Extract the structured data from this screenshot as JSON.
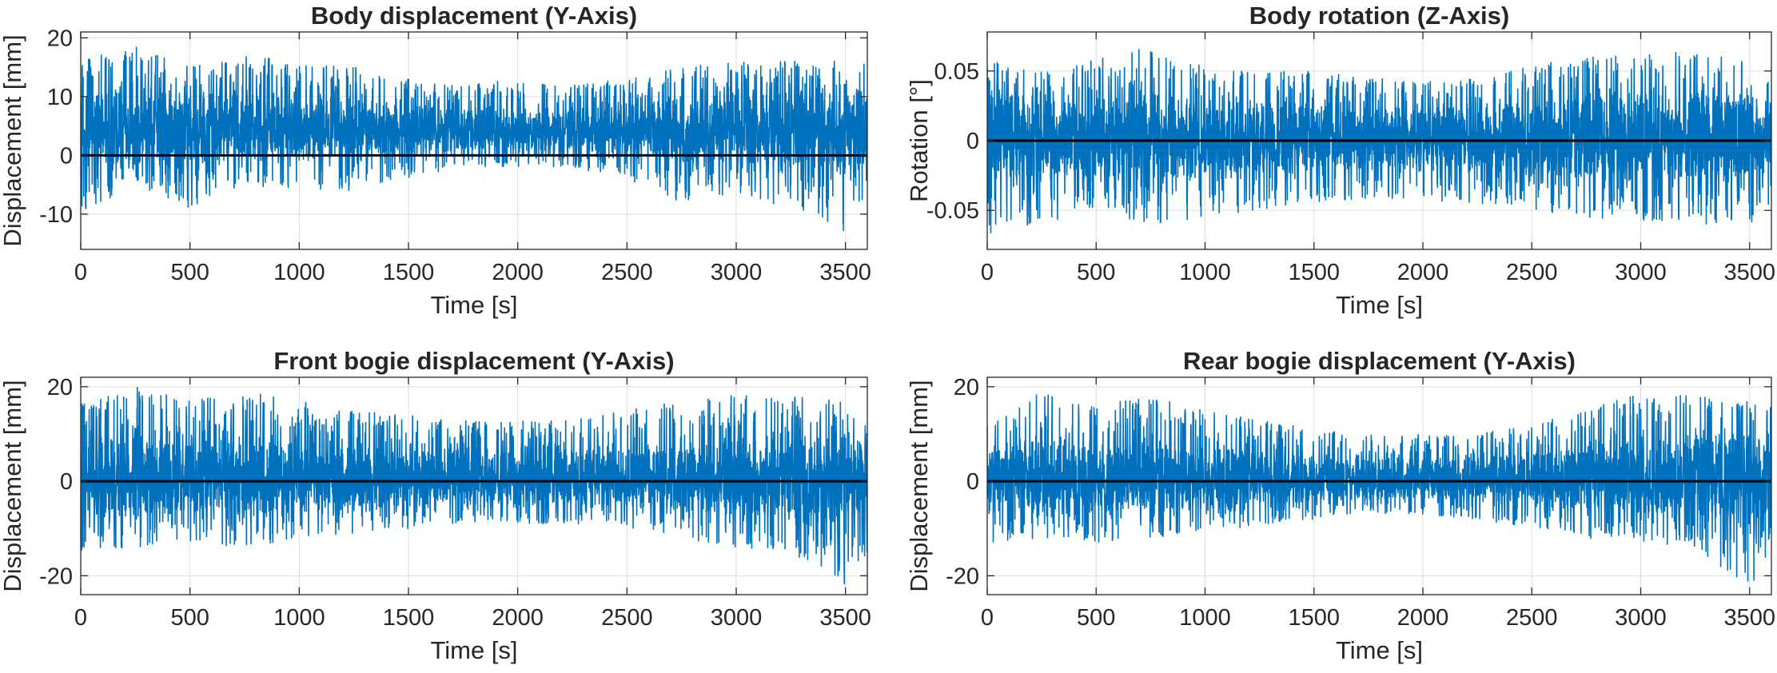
{
  "chart_data": [
    {
      "type": "line",
      "title": "Body displacement (Y-Axis)",
      "xlabel": "Time [s]",
      "ylabel": "Displacement [mm]",
      "xlim": [
        0,
        3600
      ],
      "ylim": [
        -16,
        21
      ],
      "xticks": [
        0,
        500,
        1000,
        1500,
        2000,
        2500,
        3000,
        3500
      ],
      "yticks": [
        -10,
        0,
        10,
        20
      ],
      "xtick_labels": [
        "0",
        "500",
        "1000",
        "1500",
        "2000",
        "2500",
        "3000",
        "3500"
      ],
      "ytick_labels": [
        "-10",
        "0",
        "10",
        "20"
      ],
      "grid": true,
      "reference_line": 0,
      "series": [
        {
          "name": "Body displacement",
          "color": "#0072BD",
          "mean": 4,
          "envelope_x": [
            0,
            250,
            500,
            750,
            1000,
            1250,
            1500,
            1750,
            2000,
            2250,
            2500,
            2750,
            3000,
            3250,
            3500,
            3600
          ],
          "envelope_max": [
            16,
            19,
            15,
            17,
            16,
            15,
            13,
            12,
            13,
            12,
            13,
            15,
            16,
            16,
            17,
            16
          ],
          "envelope_min": [
            -10,
            -5,
            -9,
            -5,
            -6,
            -6,
            -4,
            -2,
            -2,
            -2,
            -4,
            -8,
            -7,
            -9,
            -13,
            -9
          ]
        }
      ]
    },
    {
      "type": "line",
      "title": "Body rotation (Z-Axis)",
      "xlabel": "Time [s]",
      "ylabel": "Rotation [°]",
      "xlim": [
        0,
        3600
      ],
      "ylim": [
        -0.078,
        0.078
      ],
      "xticks": [
        0,
        500,
        1000,
        1500,
        2000,
        2500,
        3000,
        3500
      ],
      "yticks": [
        -0.05,
        0,
        0.05
      ],
      "xtick_labels": [
        "0",
        "500",
        "1000",
        "1500",
        "2000",
        "2500",
        "3000",
        "3500"
      ],
      "ytick_labels": [
        "-0.05",
        "0",
        "0.05"
      ],
      "grid": true,
      "reference_line": 0,
      "series": [
        {
          "name": "Body rotation",
          "color": "#0072BD",
          "mean": 0,
          "envelope_x": [
            0,
            250,
            500,
            750,
            1000,
            1250,
            1500,
            1750,
            2000,
            2250,
            2500,
            2750,
            3000,
            3250,
            3500,
            3600
          ],
          "envelope_max": [
            0.058,
            0.05,
            0.06,
            0.068,
            0.056,
            0.05,
            0.05,
            0.045,
            0.043,
            0.045,
            0.055,
            0.06,
            0.066,
            0.062,
            0.058,
            0.05
          ],
          "envelope_min": [
            -0.068,
            -0.06,
            -0.05,
            -0.06,
            -0.055,
            -0.05,
            -0.045,
            -0.042,
            -0.043,
            -0.045,
            -0.05,
            -0.055,
            -0.058,
            -0.06,
            -0.06,
            -0.05
          ]
        }
      ]
    },
    {
      "type": "line",
      "title": "Front bogie displacement (Y-Axis)",
      "xlabel": "Time [s]",
      "ylabel": "Displacement [mm]",
      "xlim": [
        0,
        3600
      ],
      "ylim": [
        -24,
        22
      ],
      "xticks": [
        0,
        500,
        1000,
        1500,
        2000,
        2500,
        3000,
        3500
      ],
      "yticks": [
        -20,
        0,
        20
      ],
      "xtick_labels": [
        "0",
        "500",
        "1000",
        "1500",
        "2000",
        "2500",
        "3000",
        "3500"
      ],
      "ytick_labels": [
        "-20",
        "0",
        "20"
      ],
      "grid": true,
      "reference_line": 0,
      "series": [
        {
          "name": "Front bogie displacement",
          "color": "#0072BD",
          "mean": 0,
          "envelope_x": [
            0,
            250,
            500,
            750,
            1000,
            1250,
            1500,
            1750,
            2000,
            2250,
            2500,
            2750,
            3000,
            3250,
            3500,
            3600
          ],
          "envelope_max": [
            17,
            20,
            17,
            19,
            17,
            15,
            14,
            13,
            13,
            13,
            15,
            17,
            19,
            18,
            17,
            16
          ],
          "envelope_min": [
            -15,
            -14,
            -13,
            -14,
            -12,
            -11,
            -10,
            -9,
            -9,
            -9,
            -10,
            -12,
            -14,
            -15,
            -22,
            -15
          ]
        }
      ]
    },
    {
      "type": "line",
      "title": "Rear bogie displacement (Y-Axis)",
      "xlabel": "Time [s]",
      "ylabel": "Displacement [mm]",
      "xlim": [
        0,
        3600
      ],
      "ylim": [
        -24,
        22
      ],
      "xticks": [
        0,
        500,
        1000,
        1500,
        2000,
        2500,
        3000,
        3500
      ],
      "yticks": [
        -20,
        0,
        20
      ],
      "xtick_labels": [
        "0",
        "500",
        "1000",
        "1500",
        "2000",
        "2500",
        "3000",
        "3500"
      ],
      "ytick_labels": [
        "-20",
        "0",
        "20"
      ],
      "grid": true,
      "reference_line": 0,
      "series": [
        {
          "name": "Rear bogie displacement",
          "color": "#0072BD",
          "mean": 0,
          "envelope_x": [
            0,
            250,
            500,
            750,
            1000,
            1250,
            1500,
            1750,
            2000,
            2250,
            2500,
            2750,
            3000,
            3250,
            3500,
            3600
          ],
          "envelope_max": [
            15,
            19,
            16,
            18,
            15,
            13,
            11,
            10,
            10,
            10,
            12,
            15,
            19,
            18,
            17,
            16
          ],
          "envelope_min": [
            -13,
            -12,
            -13,
            -12,
            -11,
            -10,
            -8,
            -7,
            -7,
            -8,
            -10,
            -12,
            -13,
            -14,
            -23,
            -15
          ]
        }
      ]
    }
  ]
}
